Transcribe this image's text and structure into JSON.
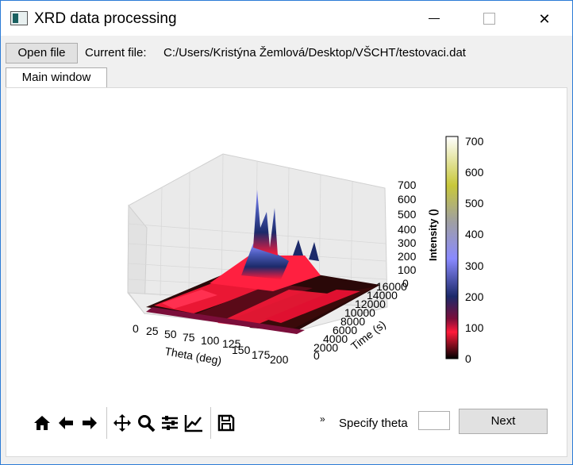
{
  "window": {
    "title": "XRD data processing",
    "icon": "app-icon"
  },
  "controls": {
    "minimize": "minimize-icon",
    "maximize": "maximize-icon",
    "close": "close-icon"
  },
  "file": {
    "open_label": "Open file",
    "current_label": "Current file:",
    "path": "C:/Users/Kristýna Žemlová/Desktop/VŠCHT/testovaci.dat"
  },
  "tabs": [
    {
      "label": "Main window"
    }
  ],
  "plot": {
    "x_label": "Theta (deg)",
    "y_label": "Time (s)",
    "colorbar_label": "Intensity ()",
    "x_ticks": [
      "0",
      "25",
      "50",
      "75",
      "100",
      "125",
      "150",
      "175",
      "200"
    ],
    "y_ticks": [
      "0",
      "2000",
      "4000",
      "6000",
      "8000",
      "10000",
      "12000",
      "14000",
      "16000"
    ],
    "z_ticks": [
      "0",
      "100",
      "200",
      "300",
      "400",
      "500",
      "600",
      "700"
    ],
    "colorbar_ticks": [
      "0",
      "100",
      "200",
      "300",
      "400",
      "500",
      "600",
      "700"
    ],
    "colormap": [
      "#000000",
      "#ff1a3a",
      "#7b0e3a",
      "#1c2a6a",
      "#8a8aff",
      "#a0a0a0",
      "#c8c83a",
      "#ffffff"
    ]
  },
  "nav_toolbar": {
    "icons": [
      "home-icon",
      "back-icon",
      "forward-icon",
      "pan-icon",
      "zoom-icon",
      "configure-icon",
      "edit-axis-icon",
      "save-icon"
    ],
    "overflow": "»"
  },
  "theta": {
    "label": "Specify theta",
    "value": "",
    "next_label": "Next"
  }
}
